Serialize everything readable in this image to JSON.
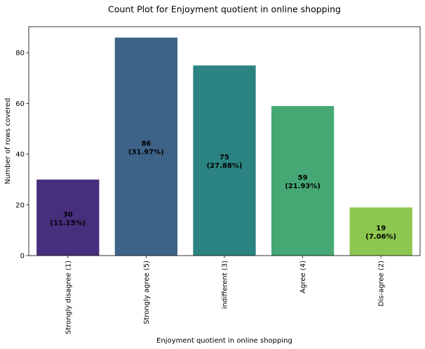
{
  "chart_data": {
    "type": "bar",
    "title": "Count Plot for Enjoyment quotient in online shopping",
    "xlabel": "Enjoyment quotient in online shopping",
    "ylabel": "Number of rows covered",
    "categories": [
      "Strongly disagree (1)",
      "Strongly agree (5)",
      "indifferent (3)",
      "Agree (4)",
      "Dis-agree (2)"
    ],
    "values": [
      30,
      86,
      75,
      59,
      19
    ],
    "percent_labels": [
      "(11.15%)",
      "(31.97%)",
      "(27.88%)",
      "(21.93%)",
      "(7.06%)"
    ],
    "colors": [
      "#472f7d",
      "#3e6389",
      "#2b8481",
      "#45a874",
      "#8dc650"
    ],
    "yticks": [
      0,
      20,
      40,
      60,
      80
    ],
    "ylim": [
      0,
      90.3
    ],
    "grid": false,
    "legend": "none"
  }
}
